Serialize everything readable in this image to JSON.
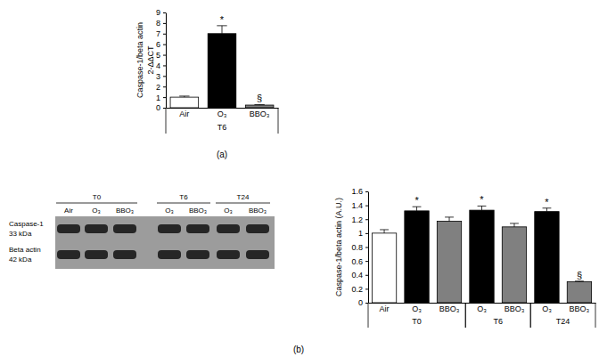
{
  "chart_data": [
    {
      "type": "bar",
      "y_label": [
        "Caspase-1/beta actin",
        "2-ΔΔCT"
      ],
      "categories": [
        "Air",
        "O₃",
        "BBO₃"
      ],
      "groups": [
        {
          "label": "T6",
          "from": 0,
          "to": 2
        }
      ],
      "values": [
        1.0,
        7.0,
        0.25
      ],
      "errors": [
        0.1,
        0.75,
        0.05
      ],
      "significance": [
        null,
        "*",
        "§"
      ],
      "colors": [
        "#ffffff",
        "#000000",
        "#808080"
      ],
      "ylim": [
        0,
        9
      ],
      "yticks": [
        0,
        1,
        2,
        3,
        4,
        5,
        6,
        7,
        8,
        9
      ],
      "grid": false,
      "annotations": [
        "(a)"
      ]
    },
    {
      "type": "bar",
      "y_label": [
        "Caspase-1/beta actin (A.U.)"
      ],
      "categories": [
        "Air",
        "O₃",
        "BBO₃",
        "O₃",
        "BBO₃",
        "O₃",
        "BBO₃"
      ],
      "groups": [
        {
          "label": "T0",
          "from": 0,
          "to": 2
        },
        {
          "label": "T6",
          "from": 3,
          "to": 4
        },
        {
          "label": "T24",
          "from": 5,
          "to": 6
        }
      ],
      "values": [
        1.0,
        1.32,
        1.17,
        1.33,
        1.09,
        1.31,
        0.3
      ],
      "errors": [
        0.05,
        0.06,
        0.06,
        0.06,
        0.05,
        0.05,
        0.01
      ],
      "significance": [
        null,
        "*",
        null,
        "*",
        null,
        "*",
        "§"
      ],
      "colors": [
        "#ffffff",
        "#000000",
        "#808080",
        "#000000",
        "#808080",
        "#000000",
        "#808080"
      ],
      "ylim": [
        0,
        1.6
      ],
      "yticks": [
        0,
        0.2,
        0.4,
        0.6,
        0.8,
        1,
        1.2,
        1.4,
        1.6
      ],
      "grid": false,
      "annotations": [
        "(b)"
      ]
    }
  ],
  "blot": {
    "groups": [
      {
        "label": "T0",
        "from": 0,
        "to": 2
      },
      {
        "label": "T6",
        "from": 3,
        "to": 4
      },
      {
        "label": "T24",
        "from": 5,
        "to": 6
      }
    ],
    "lanes": [
      "Air",
      "O₃",
      "BBO₃",
      "O₃",
      "BBO₃",
      "O₃",
      "BBO₃"
    ],
    "rows": [
      {
        "name": "Caspase-1",
        "size": "33 kDa"
      },
      {
        "name": "Beta actin",
        "size": "42 kDa"
      }
    ]
  }
}
